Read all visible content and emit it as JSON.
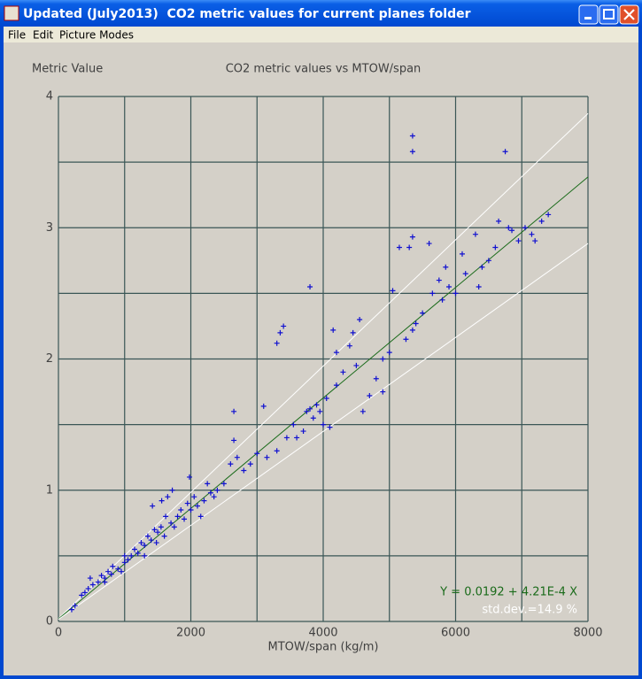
{
  "window": {
    "title": "Updated (July2013)  CO2 metric values for current planes folder",
    "menu": [
      "File",
      "Edit",
      "Picture Modes"
    ]
  },
  "chart_data": {
    "type": "scatter",
    "title": "CO2 metric values vs MTOW/span",
    "y_label": "Metric Value",
    "x_label": "MTOW/span (kg/m)",
    "annotations": [
      {
        "text": "Y = 0.0192 + 4.21E-4 X",
        "color": "#1a6b1a"
      },
      {
        "text": "std.dev.=14.9 %",
        "color": "#ffffff"
      }
    ],
    "xlim": [
      0,
      8000
    ],
    "ylim": [
      0,
      4
    ],
    "xticks": [
      0,
      2000,
      4000,
      6000,
      8000
    ],
    "yticks": [
      0,
      1,
      2,
      3,
      4
    ],
    "x_minor_grid": [
      1000,
      3000,
      5000,
      7000
    ],
    "y_minor_grid": [
      0.5,
      1.5,
      2.5,
      3.5
    ],
    "grid": true,
    "grid_color": "#3a5656",
    "series": [
      {
        "color": "#1010d0",
        "x": [
          200,
          250,
          350,
          400,
          450,
          480,
          520,
          600,
          650,
          700,
          750,
          800,
          820,
          900,
          950,
          1000,
          1050,
          1100,
          1150,
          1200,
          1250,
          1300,
          1350,
          1400,
          1420,
          1450,
          1480,
          1500,
          1550,
          1560,
          1600,
          1620,
          1650,
          1700,
          1720,
          1750,
          1800,
          1850,
          1900,
          1950,
          1980,
          2000,
          2050,
          2100,
          2150,
          2200,
          2250,
          2300,
          2350,
          2400,
          2500,
          2600,
          2650,
          2650,
          2700,
          2800,
          2900,
          3000,
          3100,
          3150,
          3300,
          3300,
          3350,
          3400,
          3450,
          3550,
          3600,
          3700,
          3750,
          3800,
          3800,
          3850,
          3900,
          3950,
          4000,
          4050,
          4100,
          4150,
          4200,
          4300,
          4400,
          4450,
          4550,
          4500,
          4600,
          4700,
          4800,
          4900,
          5000,
          5050,
          5150,
          5250,
          5300,
          5350,
          5350,
          5350,
          5350,
          5400,
          5500,
          5600,
          5650,
          5750,
          5850,
          5900,
          6000,
          6100,
          6150,
          6300,
          6350,
          6400,
          6500,
          6600,
          6650,
          6750,
          6800,
          6850,
          6950,
          7050,
          7150,
          7200,
          7300,
          7400,
          4900,
          4200,
          5800,
          1000,
          1300,
          700
        ],
        "values": [
          0.09,
          0.12,
          0.2,
          0.22,
          0.25,
          0.33,
          0.28,
          0.3,
          0.35,
          0.33,
          0.38,
          0.36,
          0.42,
          0.4,
          0.38,
          0.45,
          0.47,
          0.5,
          0.55,
          0.52,
          0.6,
          0.58,
          0.65,
          0.62,
          0.88,
          0.7,
          0.6,
          0.68,
          0.72,
          0.92,
          0.65,
          0.8,
          0.95,
          0.75,
          1.0,
          0.72,
          0.8,
          0.85,
          0.78,
          0.9,
          1.1,
          0.85,
          0.95,
          0.88,
          0.8,
          0.92,
          1.05,
          0.98,
          0.95,
          1.0,
          1.05,
          1.2,
          1.38,
          1.6,
          1.25,
          1.15,
          1.2,
          1.28,
          1.64,
          1.25,
          1.3,
          2.12,
          2.2,
          2.25,
          1.4,
          1.5,
          1.4,
          1.45,
          1.6,
          1.62,
          2.55,
          1.55,
          1.65,
          1.6,
          1.5,
          1.7,
          1.48,
          2.22,
          1.8,
          1.9,
          2.1,
          2.2,
          2.3,
          1.95,
          1.6,
          1.72,
          1.85,
          2.0,
          2.05,
          2.52,
          2.85,
          2.15,
          2.85,
          2.22,
          2.93,
          3.58,
          3.7,
          2.27,
          2.35,
          2.88,
          2.5,
          2.6,
          2.7,
          2.55,
          2.5,
          2.8,
          2.65,
          2.95,
          2.55,
          2.7,
          2.75,
          2.85,
          3.05,
          3.58,
          3.0,
          2.98,
          2.9,
          3.0,
          2.95,
          2.9,
          3.05,
          3.1,
          1.75,
          2.05,
          2.45,
          0.5,
          0.5,
          0.3
        ]
      }
    ],
    "fit_lines": [
      {
        "color": "#ffffff",
        "x": [
          0,
          8000
        ],
        "values": [
          0.022,
          3.87
        ]
      },
      {
        "color": "#1a6b1a",
        "x": [
          0,
          8000
        ],
        "values": [
          0.0192,
          3.387
        ]
      },
      {
        "color": "#ffffff",
        "x": [
          0,
          8000
        ],
        "values": [
          0.016,
          2.88
        ]
      }
    ]
  }
}
